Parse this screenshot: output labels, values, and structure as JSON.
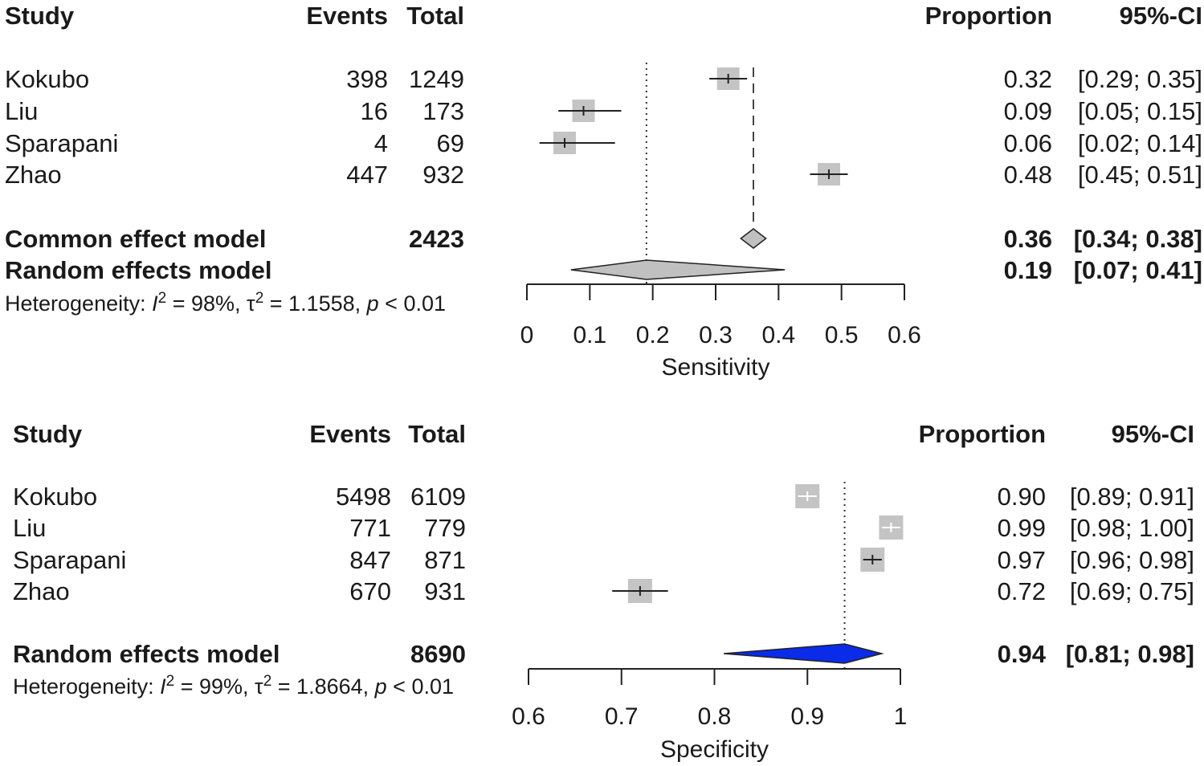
{
  "chart_data": [
    {
      "type": "forest",
      "panel": "sensitivity",
      "headers": {
        "study": "Study",
        "events": "Events",
        "total": "Total",
        "proportion": "Proportion",
        "ci": "95%-CI"
      },
      "studies": [
        {
          "name": "Kokubo",
          "events": "398",
          "total": "1249",
          "proportion": 0.32,
          "ci_low": 0.29,
          "ci_high": 0.35,
          "proportion_text": "0.32",
          "ci_text": "[0.29; 0.35]"
        },
        {
          "name": "Liu",
          "events": "16",
          "total": "173",
          "proportion": 0.09,
          "ci_low": 0.05,
          "ci_high": 0.15,
          "proportion_text": "0.09",
          "ci_text": "[0.05; 0.15]"
        },
        {
          "name": "Sparapani",
          "events": "4",
          "total": "69",
          "proportion": 0.06,
          "ci_low": 0.02,
          "ci_high": 0.14,
          "proportion_text": "0.06",
          "ci_text": "[0.02; 0.14]"
        },
        {
          "name": "Zhao",
          "events": "447",
          "total": "932",
          "proportion": 0.48,
          "ci_low": 0.45,
          "ci_high": 0.51,
          "proportion_text": "0.48",
          "ci_text": "[0.45; 0.51]"
        }
      ],
      "pooled": [
        {
          "label": "Common effect model",
          "total": "2423",
          "estimate": 0.36,
          "ci_low": 0.34,
          "ci_high": 0.38,
          "proportion_text": "0.36",
          "ci_text": "[0.34; 0.38]",
          "color": "#c0c0c0"
        },
        {
          "label": "Random effects model",
          "total": "",
          "estimate": 0.19,
          "ci_low": 0.07,
          "ci_high": 0.41,
          "proportion_text": "0.19",
          "ci_text": "[0.07; 0.41]",
          "color": "#c0c0c0"
        }
      ],
      "heterogeneity": {
        "prefix": "Heterogeneity: ",
        "i2_symbol": "I",
        "i2_value": " = 98%, ",
        "tau_symbol": "τ",
        "tau_value": " = 1.1558, ",
        "p_symbol": "p",
        "p_value": " < 0.01"
      },
      "xlim": [
        0,
        0.6
      ],
      "ticks": [
        "0",
        "0.1",
        "0.2",
        "0.3",
        "0.4",
        "0.5",
        "0.6"
      ],
      "xlabel": "Sensitivity",
      "reference_line": 0.19,
      "common_line": 0.36
    },
    {
      "type": "forest",
      "panel": "specificity",
      "headers": {
        "study": "Study",
        "events": "Events",
        "total": "Total",
        "proportion": "Proportion",
        "ci": "95%-CI"
      },
      "studies": [
        {
          "name": "Kokubo",
          "events": "5498",
          "total": "6109",
          "proportion": 0.9,
          "ci_low": 0.89,
          "ci_high": 0.91,
          "proportion_text": "0.90",
          "ci_text": "[0.89; 0.91]"
        },
        {
          "name": "Liu",
          "events": "771",
          "total": "779",
          "proportion": 0.99,
          "ci_low": 0.98,
          "ci_high": 1.0,
          "proportion_text": "0.99",
          "ci_text": "[0.98; 1.00]"
        },
        {
          "name": "Sparapani",
          "events": "847",
          "total": "871",
          "proportion": 0.97,
          "ci_low": 0.96,
          "ci_high": 0.98,
          "proportion_text": "0.97",
          "ci_text": "[0.96; 0.98]"
        },
        {
          "name": "Zhao",
          "events": "670",
          "total": "931",
          "proportion": 0.72,
          "ci_low": 0.69,
          "ci_high": 0.75,
          "proportion_text": "0.72",
          "ci_text": "[0.69; 0.75]"
        }
      ],
      "pooled": [
        {
          "label": "Random effects model",
          "total": "8690",
          "estimate": 0.94,
          "ci_low": 0.81,
          "ci_high": 0.98,
          "proportion_text": "0.94",
          "ci_text": "[0.81; 0.98]",
          "color": "#0a2be8"
        }
      ],
      "heterogeneity": {
        "prefix": "Heterogeneity: ",
        "i2_symbol": "I",
        "i2_value": " = 99%, ",
        "tau_symbol": "τ",
        "tau_value": " = 1.8664, ",
        "p_symbol": "p",
        "p_value": " < 0.01"
      },
      "xlim": [
        0.6,
        1.0
      ],
      "ticks": [
        "0.6",
        "0.7",
        "0.8",
        "0.9",
        "1"
      ],
      "xlabel": "Specificity",
      "reference_line": 0.94,
      "common_line": null
    }
  ],
  "colors": {
    "square": "#c4c4c4",
    "line": "#222222",
    "text": "#1a1a1a"
  }
}
